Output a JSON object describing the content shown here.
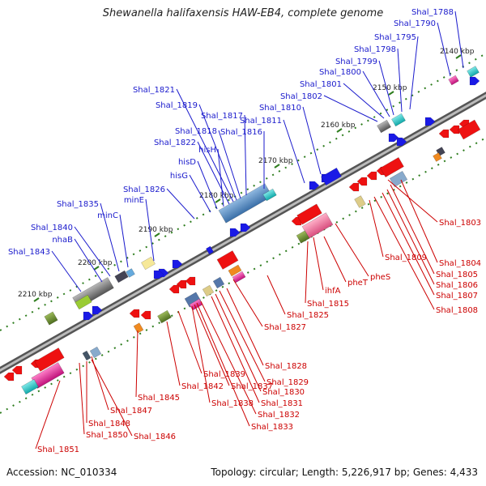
{
  "title": "Shewanella halifaxensis HAW-EB4, complete genome",
  "footer": {
    "accession": "Accession: NC_010334",
    "summary": "Topology: circular; Length: 5,226,917 bp; Genes: 4,433"
  },
  "colors": {
    "backbone": "#777777",
    "top_strand_label": "#1a1acc",
    "bottom_strand_label": "#cc0000",
    "forward_arrow": "#1a1ae6",
    "reverse_arrow": "#ee1111",
    "tick_dash": "#2e7d1e",
    "tick_dot": "#7dbb6b"
  },
  "scale": {
    "ticks": [
      "2140 kbp",
      "2150 kbp",
      "2160 kbp",
      "2170 kbp",
      "2180 kbp",
      "2190 kbp",
      "2200 kbp",
      "2210 kbp"
    ]
  },
  "top_genes": [
    "Shal_1788",
    "Shal_1790",
    "Shal_1795",
    "Shal_1798",
    "Shal_1799",
    "Shal_1800",
    "Shal_1801",
    "Shal_1802",
    "Shal_1810",
    "Shal_1811",
    "Shal_1816",
    "Shal_1817",
    "Shal_1818",
    "Shal_1819",
    "Shal_1821",
    "Shal_1822",
    "hisH",
    "hisD",
    "hisG",
    "Shal_1826",
    "minE",
    "minC",
    "Shal_1835",
    "Shal_1840",
    "nhaB",
    "Shal_1843"
  ],
  "bottom_genes": [
    "Shal_1803",
    "Shal_1804",
    "Shal_1805",
    "Shal_1806",
    "Shal_1807",
    "Shal_1808",
    "Shal_1809",
    "pheS",
    "pheT",
    "ihfA",
    "Shal_1815",
    "Shal_1825",
    "Shal_1827",
    "Shal_1828",
    "Shal_1829",
    "Shal_1830",
    "Shal_1831",
    "Shal_1832",
    "Shal_1833",
    "Shal_1837",
    "Shal_1838",
    "Shal_1839",
    "Shal_1842",
    "Shal_1845",
    "Shal_1846",
    "Shal_1847",
    "Shal_1848",
    "Shal_1850",
    "Shal_1851"
  ],
  "boxes": [
    {
      "color": "#9acc33"
    },
    {
      "color": "#f7a0bf"
    },
    {
      "color": "#66aadd"
    },
    {
      "color": "#444455"
    },
    {
      "color": "#88aacc"
    },
    {
      "color": "#5577aa"
    },
    {
      "color": "#ddcc88"
    },
    {
      "color": "#f6e898"
    },
    {
      "color": "#f08a20"
    },
    {
      "color": "#445566"
    }
  ]
}
